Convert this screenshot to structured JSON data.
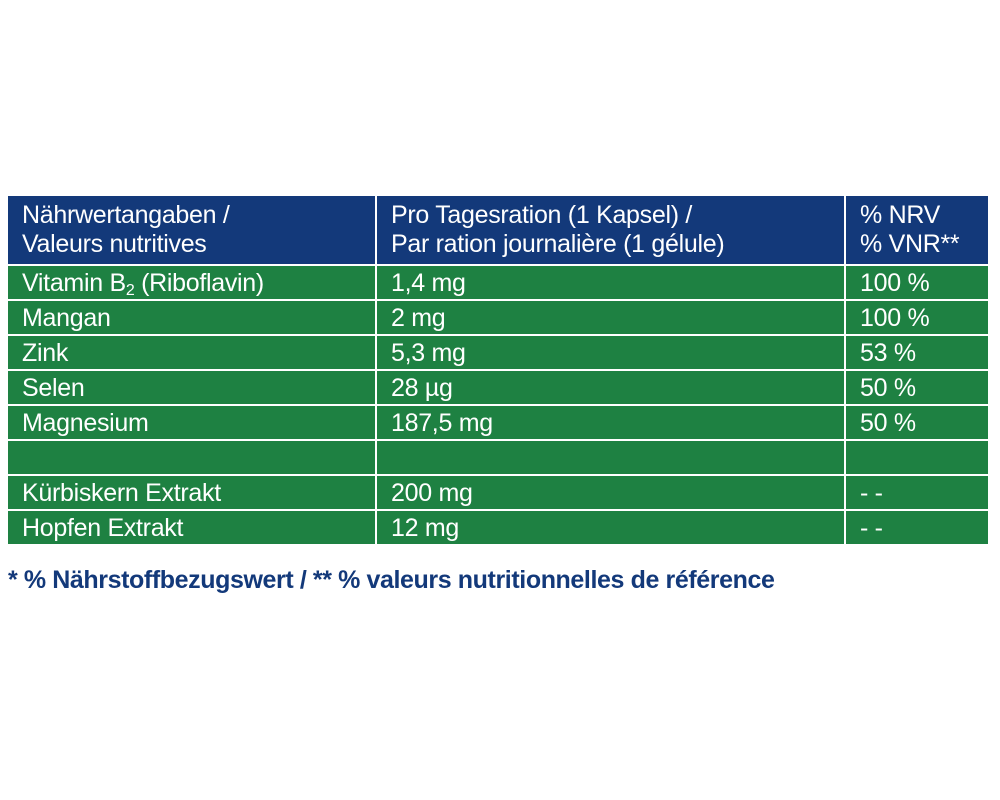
{
  "colors": {
    "header_background": "#13397a",
    "row_background": "#1e8142",
    "footnote_text": "#13397a"
  },
  "header": {
    "nutrient_line1": "Nährwertangaben /",
    "nutrient_line2": "Valeurs nutritives",
    "amount_line1": "Pro Tagesration (1 Kapsel) /",
    "amount_line2": "Par ration journalière (1 gélule)",
    "nrv_line1": "% NRV",
    "nrv_line2": "% VNR**"
  },
  "rows": [
    {
      "nutrient_prefix": "Vitamin B",
      "nutrient_sub": "2",
      "nutrient_suffix": " (Riboflavin)",
      "amount": "1,4 mg",
      "nrv": "100 %"
    },
    {
      "nutrient": "Mangan",
      "amount": "2 mg",
      "nrv": "100 %"
    },
    {
      "nutrient": "Zink",
      "amount": "5,3 mg",
      "nrv": "53 %"
    },
    {
      "nutrient": "Selen",
      "amount": "28 µg",
      "nrv": "50 %"
    },
    {
      "nutrient": "Magnesium",
      "amount": "187,5 mg",
      "nrv": "50 %"
    },
    {
      "nutrient": "",
      "amount": "",
      "nrv": ""
    },
    {
      "nutrient": "Kürbiskern Extrakt",
      "amount": "200 mg",
      "nrv": "- -"
    },
    {
      "nutrient": "Hopfen Extrakt",
      "amount": "12 mg",
      "nrv": "- -"
    }
  ],
  "footnote": "* % Nährstoffbezugswert / ** % valeurs nutritionnelles de référence"
}
